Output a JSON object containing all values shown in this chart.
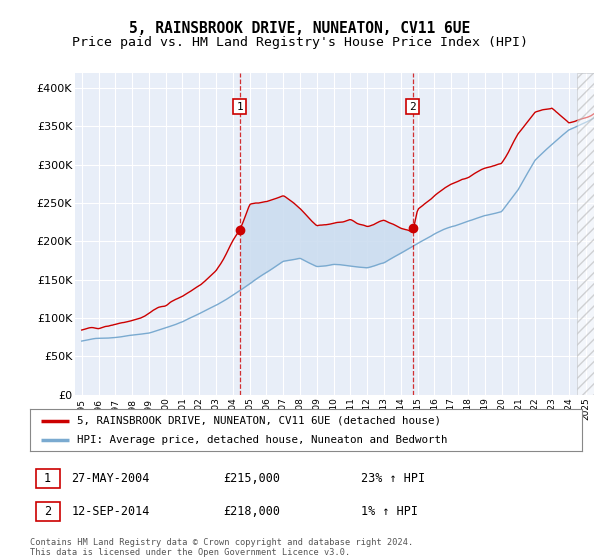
{
  "title": "5, RAINSBROOK DRIVE, NUNEATON, CV11 6UE",
  "subtitle": "Price paid vs. HM Land Registry's House Price Index (HPI)",
  "title_fontsize": 10.5,
  "subtitle_fontsize": 9.5,
  "ylim": [
    0,
    420000
  ],
  "yticks": [
    0,
    50000,
    100000,
    150000,
    200000,
    250000,
    300000,
    350000,
    400000
  ],
  "ytick_labels": [
    "£0",
    "£50K",
    "£100K",
    "£150K",
    "£200K",
    "£250K",
    "£300K",
    "£350K",
    "£400K"
  ],
  "background_color": "#ffffff",
  "plot_bg_color": "#e8eef8",
  "grid_color": "#ffffff",
  "red_line_color": "#cc0000",
  "blue_line_color": "#7aaad0",
  "shade_color": "#ccddf0",
  "marker1_x": 2004.4,
  "marker1_price": 215000,
  "marker1_hpi_pct": "23%",
  "marker1_date": "27-MAY-2004",
  "marker2_x": 2014.7,
  "marker2_price": 218000,
  "marker2_hpi_pct": "1%",
  "marker2_date": "12-SEP-2014",
  "legend_label1": "5, RAINSBROOK DRIVE, NUNEATON, CV11 6UE (detached house)",
  "legend_label2": "HPI: Average price, detached house, Nuneaton and Bedworth",
  "footnote": "Contains HM Land Registry data © Crown copyright and database right 2024.\nThis data is licensed under the Open Government Licence v3.0.",
  "xlim_left": 1994.6,
  "xlim_right": 2025.5,
  "hatch_start": 2024.5
}
